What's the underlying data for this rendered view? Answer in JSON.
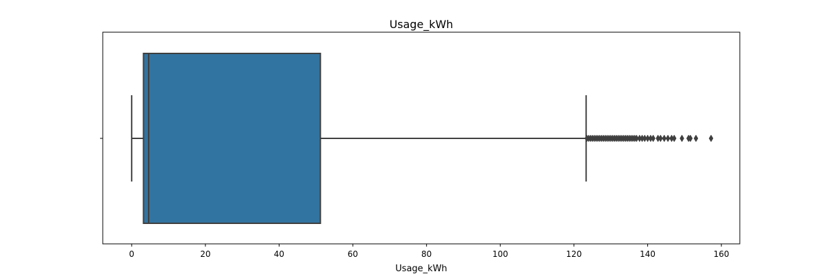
{
  "chart_data": {
    "type": "boxplot",
    "orientation": "horizontal",
    "title": "Usage_kWh",
    "xlabel": "Usage_kWh",
    "ylabel": "",
    "xlim": [
      -7.85,
      165.0
    ],
    "xticks": [
      0,
      20,
      40,
      60,
      80,
      100,
      120,
      140,
      160
    ],
    "grid": false,
    "box_color": "#3274a1",
    "line_color": "#3f3f3f",
    "series": [
      {
        "whisker_low": 0.0,
        "q1": 3.2,
        "median": 4.6,
        "q3": 51.2,
        "whisker_high": 123.3,
        "outliers": [
          123.5,
          124.0,
          124.5,
          125.0,
          125.5,
          126.0,
          126.5,
          127.0,
          127.5,
          128.0,
          128.5,
          129.0,
          129.5,
          130.0,
          130.5,
          131.0,
          131.5,
          132.0,
          132.5,
          133.0,
          133.5,
          134.0,
          134.5,
          135.0,
          135.5,
          136.0,
          136.5,
          137.0,
          137.8,
          138.5,
          139.2,
          140.0,
          140.8,
          141.5,
          142.8,
          143.5,
          144.5,
          145.5,
          146.5,
          147.2,
          149.3,
          151.1,
          151.6,
          153.1,
          157.2
        ]
      }
    ]
  }
}
